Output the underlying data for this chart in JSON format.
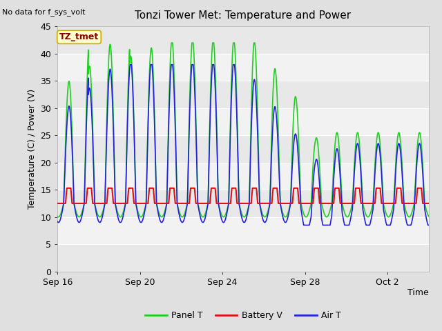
{
  "title": "Tonzi Tower Met: Temperature and Power",
  "subtitle": "No data for f_sys_volt",
  "ylabel": "Temperature (C) / Power (V)",
  "xlabel": "Time",
  "ylim": [
    0,
    45
  ],
  "yticks": [
    0,
    5,
    10,
    15,
    20,
    25,
    30,
    35,
    40,
    45
  ],
  "xtick_labels": [
    "Sep 16",
    "Sep 20",
    "Sep 24",
    "Sep 28",
    "Oct 2"
  ],
  "xtick_positions": [
    0,
    4,
    8,
    12,
    16
  ],
  "total_days": 18,
  "fig_bg_color": "#e8e8e8",
  "plot_bg_color": "#f0f0f0",
  "band_color_light": "#f0f0f0",
  "band_color_dark": "#e0e0e0",
  "grid_color": "#ffffff",
  "label_box_text": "TZ_tmet",
  "label_box_facecolor": "#ffffcc",
  "label_box_edgecolor": "#ccaa00",
  "label_box_text_color": "#880000",
  "legend_entries": [
    "Panel T",
    "Battery V",
    "Air T"
  ],
  "panel_t_color": "#22cc22",
  "battery_v_color": "#dd1111",
  "air_t_color": "#2222dd",
  "line_width": 1.2
}
